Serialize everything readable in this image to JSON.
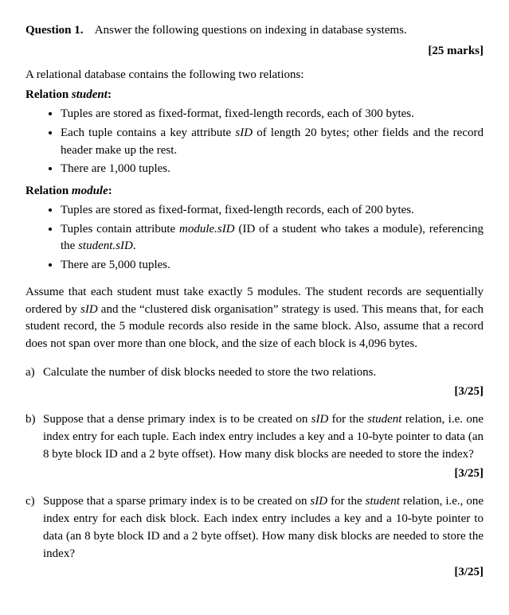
{
  "q": {
    "number": "Question 1.",
    "prompt": "Answer the following questions on indexing in database systems.",
    "total_marks": "[25 marks]"
  },
  "intro": "A relational database contains the following two relations:",
  "rel1": {
    "label": "Relation ",
    "name": "student",
    "colon": ":",
    "b1": "Tuples are stored as fixed-format, fixed-length records, each of 300 bytes.",
    "b2a": "Each tuple contains a key attribute ",
    "b2b": "sID",
    "b2c": " of length 20 bytes; other fields and the record header make up the rest.",
    "b3": "There are 1,000 tuples."
  },
  "rel2": {
    "label": "Relation ",
    "name": "module",
    "colon": ":",
    "b1": "Tuples are stored as fixed-format, fixed-length records, each of 200 bytes.",
    "b2a": "Tuples contain attribute ",
    "b2b": "module.sID",
    "b2c": " (ID of a student who takes a module), referencing the ",
    "b2d": "student.sID",
    "b2e": ".",
    "b3": "There are 5,000 tuples."
  },
  "assume": {
    "t1": "Assume that each student must take exactly 5 modules. The student records are sequentially ordered by ",
    "t2": "sID",
    "t3": " and the “clustered disk organisation” strategy is used. This means that, for each student record, the 5 module records also reside in the same block. Also, assume that a record does not span over more than one block, and the size of each block is 4,096 bytes."
  },
  "a": {
    "label": "a)",
    "text": "Calculate the number of disk blocks needed to store the two relations.",
    "marks": "[3/25]"
  },
  "b": {
    "label": "b)",
    "t1": "Suppose that a dense primary index is to be created on ",
    "t2": "sID",
    "t3": " for the ",
    "t4": "student",
    "t5": " relation, i.e. one index entry for each tuple. Each index entry includes a key and a 10-byte pointer to data (an 8 byte block ID and a 2 byte offset). How many disk blocks are needed to store the index?",
    "marks": "[3/25]"
  },
  "c": {
    "label": "c)",
    "t1": "Suppose that a sparse primary index is to be created on ",
    "t2": "sID",
    "t3": " for the ",
    "t4": "student",
    "t5": " relation, i.e., one index entry for each disk block. Each index entry includes a key and a 10-byte pointer to data (an 8 byte block ID and a 2 byte offset). How many disk blocks are needed to store the index?",
    "marks": "[3/25]"
  }
}
